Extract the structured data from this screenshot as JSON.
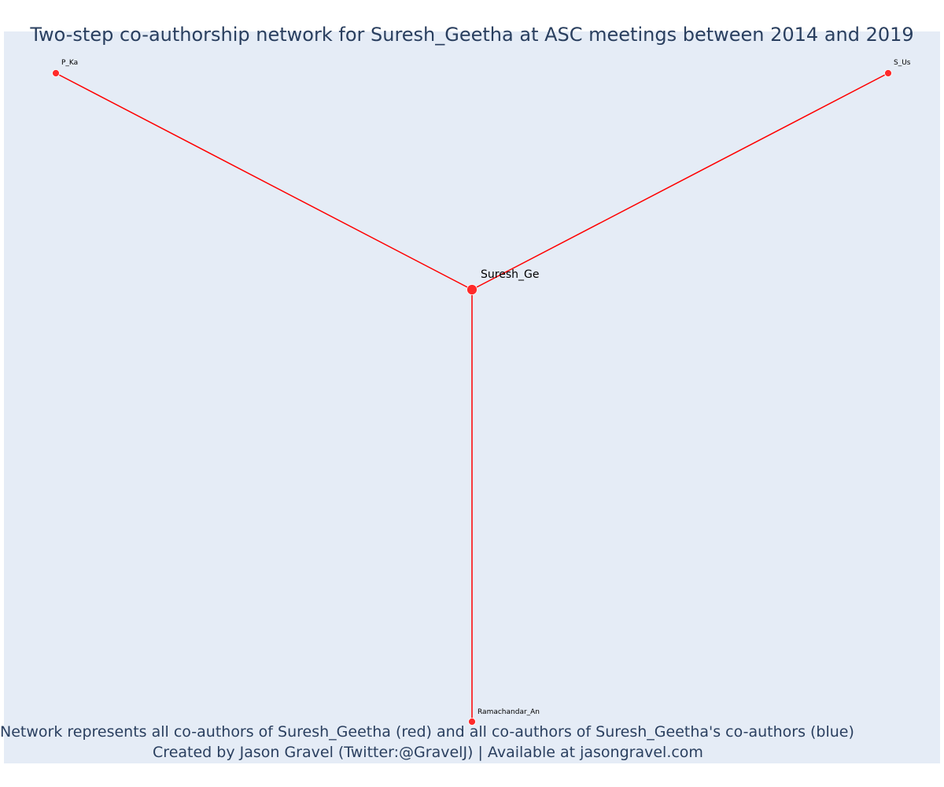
{
  "title": "Two-step co-authorship network for Suresh_Geetha at ASC meetings between 2014 and 2019",
  "annotations": {
    "line1": "Network represents all co-authors of Suresh_Geetha (red) and all co-authors of Suresh_Geetha's co-authors (blue)",
    "line2": "Created by Jason Gravel (Twitter:@GravelJ) | Available at jasongravel.com"
  },
  "colors": {
    "background": "#e5ecf6",
    "edge": "#ff0000",
    "node": "#ff2a2a",
    "title_text": "#2a3f5f"
  },
  "nodes": [
    {
      "id": "Suresh_Ge",
      "label": "Suresh_Ge",
      "role": "focal"
    },
    {
      "id": "P_Ka",
      "label": "P_Ka",
      "role": "co-author"
    },
    {
      "id": "S_Us",
      "label": "S_Us",
      "role": "co-author"
    },
    {
      "id": "Ramachandar_An",
      "label": "Ramachandar_An",
      "role": "co-author"
    }
  ],
  "edges": [
    {
      "source": "Suresh_Ge",
      "target": "P_Ka"
    },
    {
      "source": "Suresh_Ge",
      "target": "S_Us"
    },
    {
      "source": "Suresh_Ge",
      "target": "Ramachandar_An"
    }
  ]
}
